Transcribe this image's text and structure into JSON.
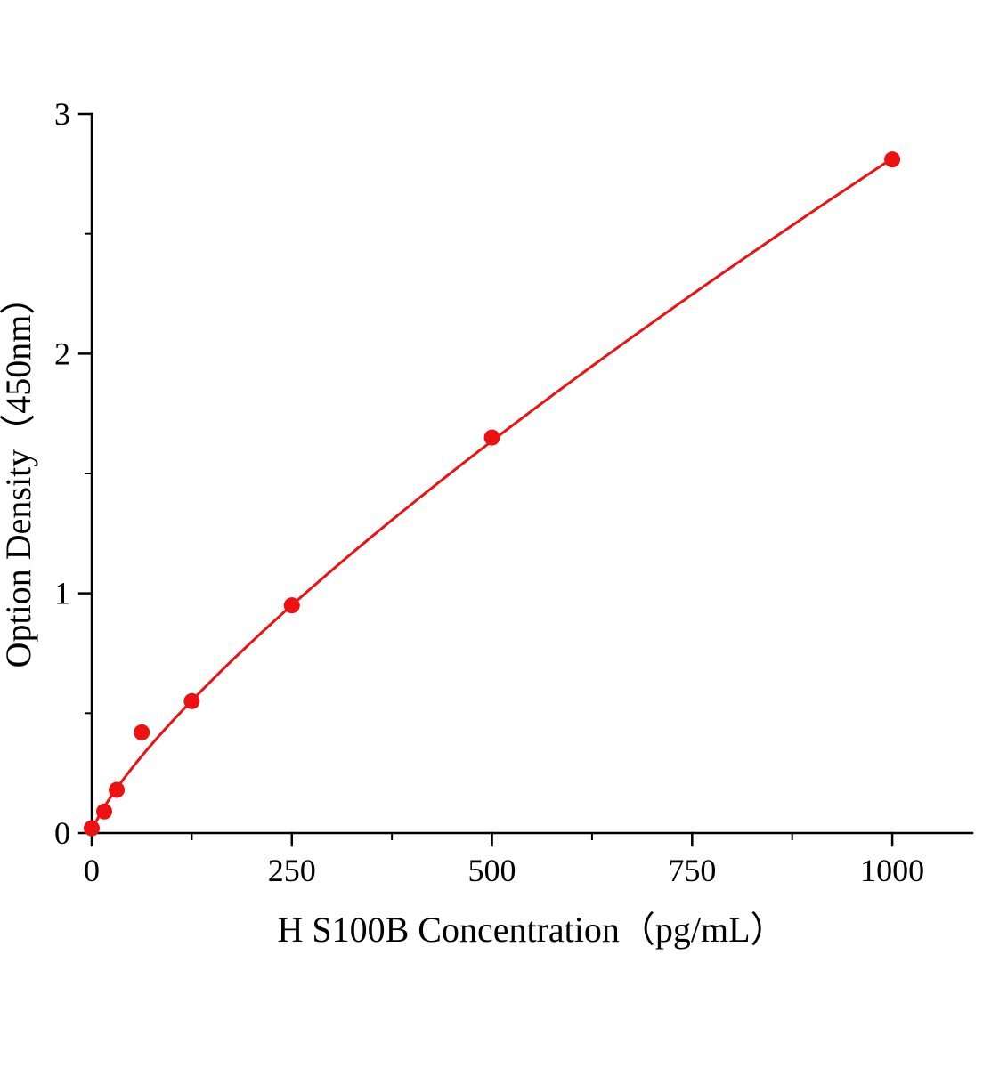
{
  "chart_data": {
    "type": "line",
    "title": "",
    "xlabel": "H S100B Concentration（pg/mL）",
    "ylabel": "Option Density（450nm）",
    "x": [
      0,
      15.6,
      31.2,
      62.5,
      125,
      250,
      500,
      1000
    ],
    "y": [
      0.02,
      0.09,
      0.18,
      0.42,
      0.55,
      0.95,
      1.65,
      2.81
    ],
    "xlim": [
      0,
      1100
    ],
    "ylim": [
      0,
      3
    ],
    "xticks": [
      0,
      250,
      500,
      750,
      1000
    ],
    "xminorticks": [
      125,
      375,
      625,
      875
    ],
    "yticks": [
      0,
      1,
      2,
      3
    ],
    "yminorticks": [
      0.5,
      1.5,
      2.5
    ],
    "grid": false,
    "legend": false,
    "line_color": "#ee1111",
    "marker": "circle",
    "marker_size": 9,
    "line_width": 3,
    "axis_color": "#000000",
    "fit": {
      "model": "power",
      "a": 0.0126,
      "b": 0.783
    }
  }
}
